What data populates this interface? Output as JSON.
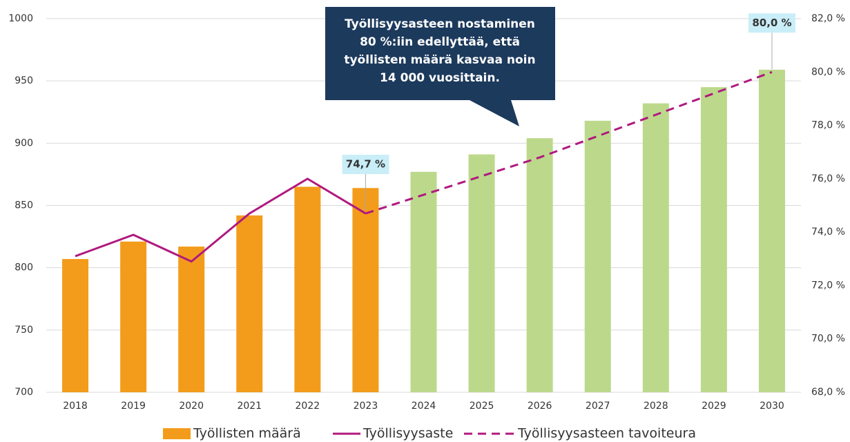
{
  "chart_data": {
    "type": "bar-line",
    "categories": [
      "2018",
      "2019",
      "2020",
      "2021",
      "2022",
      "2023",
      "2024",
      "2025",
      "2026",
      "2027",
      "2028",
      "2029",
      "2030"
    ],
    "series": [
      {
        "name": "Työllisten määrä",
        "type": "bar",
        "axis": "y",
        "color": "#f39c1b",
        "colors": [
          "#f39c1b",
          "#f39c1b",
          "#f39c1b",
          "#f39c1b",
          "#f39c1b",
          "#f39c1b",
          "#bcd98b",
          "#bcd98b",
          "#bcd98b",
          "#bcd98b",
          "#bcd98b",
          "#bcd98b",
          "#bcd98b"
        ],
        "values": [
          807,
          821,
          817,
          842,
          865,
          864,
          877,
          891,
          904,
          918,
          932,
          945,
          959
        ]
      },
      {
        "name": "Työllisyysaste",
        "type": "line",
        "axis": "y2",
        "color": "#b0197e",
        "dashed": false,
        "values": [
          73.1,
          73.9,
          72.9,
          74.7,
          76.0,
          74.7,
          null,
          null,
          null,
          null,
          null,
          null,
          null
        ],
        "value_labels": [
          null,
          null,
          null,
          null,
          null,
          "74,7 %",
          null,
          null,
          null,
          null,
          null,
          null,
          null
        ]
      },
      {
        "name": "Työllisyysasteen tavoiteura",
        "type": "line",
        "axis": "y2",
        "color": "#b0197e",
        "dashed": true,
        "values": [
          null,
          null,
          null,
          null,
          null,
          74.7,
          75.4,
          76.1,
          76.8,
          77.6,
          78.4,
          79.2,
          80.0
        ],
        "value_labels": [
          null,
          null,
          null,
          null,
          null,
          null,
          null,
          null,
          null,
          null,
          null,
          null,
          "80,0 %"
        ]
      }
    ],
    "ylim": [
      700,
      1000
    ],
    "yticks": [
      700,
      750,
      800,
      850,
      900,
      950,
      1000
    ],
    "y2lim": [
      68,
      82
    ],
    "y2ticks": [
      {
        "value": 68,
        "label": "68,0 %"
      },
      {
        "value": 70,
        "label": "70,0 %"
      },
      {
        "value": 72,
        "label": "72,0 %"
      },
      {
        "value": 74,
        "label": "74,0 %"
      },
      {
        "value": 76,
        "label": "76,0 %"
      },
      {
        "value": 78,
        "label": "78,0 %"
      },
      {
        "value": 80,
        "label": "80,0 %"
      },
      {
        "value": 82,
        "label": "82,0 %"
      }
    ],
    "grid": true,
    "legend": "bottom",
    "annotation": {
      "lines": [
        "Työllisyysasteen nostaminen",
        "80 %:iin edellyttää, että",
        "työllisten määrä kasvaa noin",
        "14 000 vuosittain."
      ]
    }
  }
}
